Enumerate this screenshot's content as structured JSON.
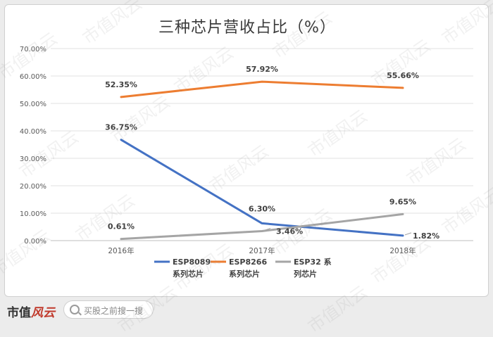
{
  "chart_data": {
    "type": "line",
    "title": "三种芯片营收占比（%）",
    "categories": [
      "2016年",
      "2017年",
      "2018年"
    ],
    "ylim": [
      0,
      70
    ],
    "yticks": [
      "0.00%",
      "10.00%",
      "20.00%",
      "30.00%",
      "40.00%",
      "50.00%",
      "60.00%",
      "70.00%"
    ],
    "grid": true,
    "legend_position": "bottom",
    "series": [
      {
        "name": "ESP8089系列芯片",
        "legend_lines": [
          "ESP8089",
          "系列芯片"
        ],
        "color": "#4472c4",
        "values": [
          36.75,
          6.3,
          1.82
        ],
        "labels": [
          "36.75%",
          "6.30%",
          "1.82%"
        ]
      },
      {
        "name": "ESP8266系列芯片",
        "legend_lines": [
          "ESP8266",
          "系列芯片"
        ],
        "color": "#ed7d31",
        "values": [
          52.35,
          57.92,
          55.66
        ],
        "labels": [
          "52.35%",
          "57.92%",
          "55.66%"
        ]
      },
      {
        "name": "ESP32 系列芯片",
        "legend_lines": [
          "ESP32 系",
          "列芯片"
        ],
        "color": "#a5a5a5",
        "values": [
          0.61,
          3.46,
          9.65
        ],
        "labels": [
          "0.61%",
          "3.46%",
          "9.65%"
        ]
      }
    ]
  },
  "footer": {
    "brand_main": "市值",
    "brand_accent": "风云",
    "search_placeholder": "买股之前搜一搜"
  },
  "watermark_text": "市值风云"
}
